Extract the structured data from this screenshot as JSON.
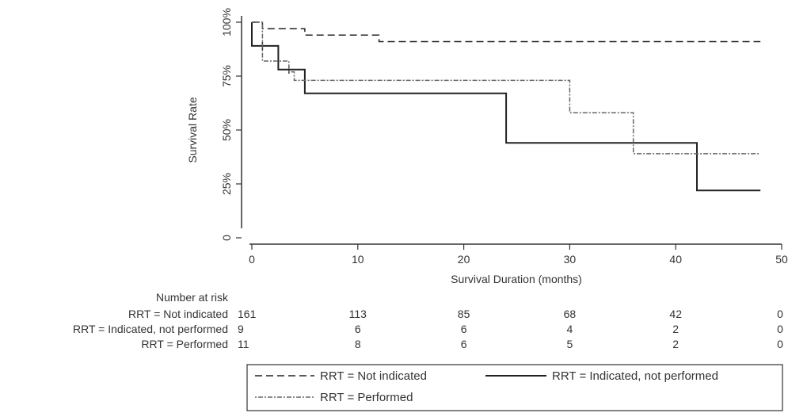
{
  "chart_data": {
    "type": "line",
    "title": "",
    "xlabel": "Survival Duration (months)",
    "ylabel": "Survival Rate",
    "xlim": [
      0,
      50
    ],
    "ylim": [
      0,
      1
    ],
    "xticks": [
      0,
      10,
      20,
      30,
      40,
      50
    ],
    "xtick_labels": [
      "0",
      "10",
      "20",
      "30",
      "40",
      "50"
    ],
    "yticks": [
      0,
      0.25,
      0.5,
      0.75,
      1.0
    ],
    "ytick_labels": [
      "0",
      "25%",
      "50%",
      "75%",
      "100%"
    ],
    "grid": false,
    "legend_position": "bottom",
    "series": [
      {
        "name": "RRT = Not indicated",
        "style": "dashed",
        "color": "#222222",
        "x": [
          0,
          1,
          1,
          5,
          5,
          12,
          12,
          48
        ],
        "y": [
          1.0,
          1.0,
          0.97,
          0.97,
          0.94,
          0.94,
          0.91,
          0.91
        ]
      },
      {
        "name": "RRT = Indicated, not performed",
        "style": "solid",
        "color": "#222222",
        "x": [
          0,
          0,
          2.5,
          2.5,
          5,
          5,
          24,
          24,
          42,
          42,
          48
        ],
        "y": [
          1.0,
          0.89,
          0.89,
          0.78,
          0.78,
          0.67,
          0.67,
          0.44,
          0.44,
          0.22,
          0.22
        ],
        "censor_x": [
          1,
          3.5
        ],
        "censor_y": [
          0.89,
          0.78
        ]
      },
      {
        "name": "RRT = Performed",
        "style": "dotted",
        "color": "#666666",
        "x": [
          0,
          1,
          1,
          3.5,
          3.5,
          4,
          4,
          30,
          30,
          36,
          36,
          48
        ],
        "y": [
          1.0,
          1.0,
          0.82,
          0.82,
          0.77,
          0.77,
          0.73,
          0.73,
          0.58,
          0.58,
          0.39,
          0.39
        ]
      }
    ],
    "risk_table": {
      "title": "Number at risk",
      "times": [
        0,
        10,
        20,
        30,
        40,
        50
      ],
      "rows": [
        {
          "label": "RRT = Not indicated",
          "values": [
            "161",
            "113",
            "85",
            "68",
            "42",
            "0"
          ]
        },
        {
          "label": "RRT = Indicated, not performed",
          "values": [
            "9",
            "6",
            "6",
            "4",
            "2",
            "0"
          ]
        },
        {
          "label": "RRT = Performed",
          "values": [
            "11",
            "8",
            "6",
            "5",
            "2",
            "0"
          ]
        }
      ]
    }
  }
}
